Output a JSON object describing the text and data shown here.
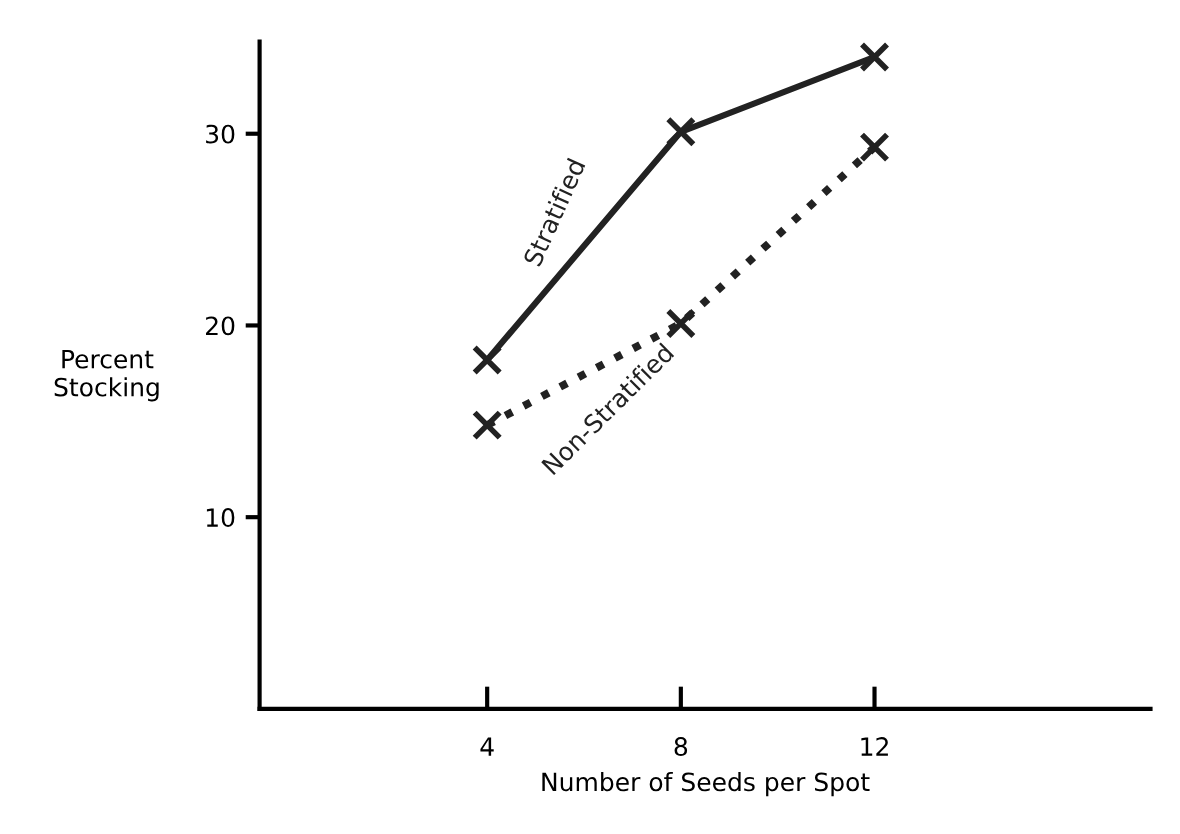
{
  "chart_data": {
    "type": "line",
    "xlabel": "Number of Seeds per Spot",
    "ylabel": "Percent\nStocking",
    "x": [
      4,
      8,
      12
    ],
    "xlim": [
      -0.7,
      17.7
    ],
    "xticks": [
      4,
      8,
      12
    ],
    "ylim": [
      0,
      34.8
    ],
    "yticks": [
      10,
      20,
      30
    ],
    "marker": "cross",
    "grid": false,
    "legend": false,
    "series": [
      {
        "name": "Stratified",
        "color": "#222222",
        "values": [
          18.2,
          30.1,
          34.0
        ],
        "line_style": "solid"
      },
      {
        "name": "Non-Stratified",
        "color": "#222222",
        "values": [
          14.8,
          20.1,
          29.3
        ],
        "line_style": "dotted"
      }
    ]
  }
}
